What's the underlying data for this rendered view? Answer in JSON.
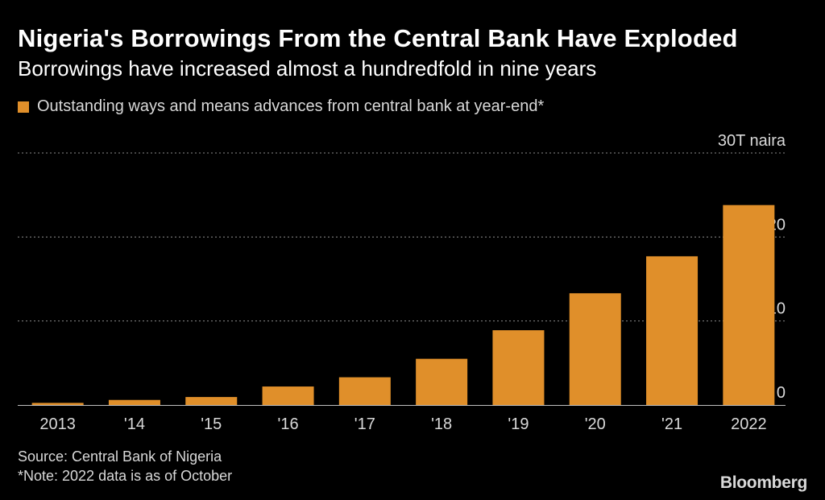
{
  "header": {
    "title": "Nigeria's Borrowings From the Central Bank Have Exploded",
    "subtitle": "Borrowings have increased almost a hundredfold in nine years"
  },
  "colors": {
    "bar": "#e08f2a",
    "background": "#000000",
    "text": "#ffffff",
    "muted": "#d9d9d9",
    "grid": "#8a8a8a"
  },
  "chart_data": {
    "type": "bar",
    "title": "Nigeria's Borrowings From the Central Bank Have Exploded",
    "subtitle": "Borrowings have increased almost a hundredfold in nine years",
    "legend": [
      "Outstanding ways and means advances from central bank at year-end*"
    ],
    "legend_position": "top-left",
    "categories": [
      "2013",
      "'14",
      "'15",
      "'16",
      "'17",
      "'18",
      "'19",
      "'20",
      "'21",
      "2022"
    ],
    "values": [
      0.25,
      0.6,
      0.95,
      2.2,
      3.3,
      5.5,
      8.9,
      13.3,
      17.7,
      23.8
    ],
    "ylim": [
      0,
      30
    ],
    "yticks": [
      0,
      10,
      20,
      30
    ],
    "ytick_labels": [
      "0",
      "10",
      "20",
      "30T naira"
    ],
    "xlabel": "",
    "ylabel": "T naira",
    "grid": true,
    "y_axis_side": "right"
  },
  "footer": {
    "source": "Source: Central Bank of Nigeria",
    "note": "*Note: 2022 data is as of October",
    "brand": "Bloomberg"
  }
}
